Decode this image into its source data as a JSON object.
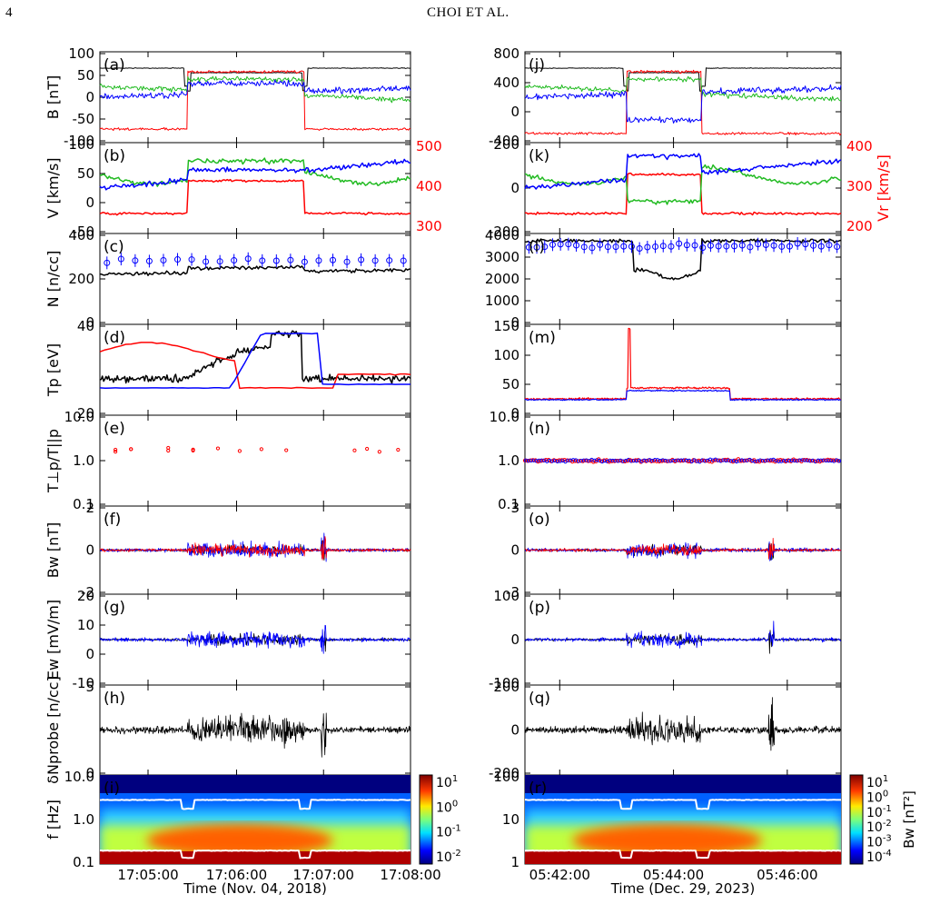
{
  "page": {
    "number": "4",
    "running_head": "CHOI ET AL."
  },
  "colors": {
    "black": "#000000",
    "red": "#ff0000",
    "green": "#22bb22",
    "blue": "#0000ff",
    "white": "#ffffff"
  },
  "chart_data": [
    {
      "type": "line",
      "column": "left",
      "xlabel": "Time (Nov. 04, 2018)",
      "xticks": [
        "17:05:00",
        "17:06:00",
        "17:07:00",
        "17:08:00"
      ],
      "xrange": [
        "17:04:28",
        "17:08:00"
      ],
      "panels": [
        {
          "id": "a",
          "label": "(a)",
          "ylabel": "B [nT]",
          "ylim": [
            -100,
            100
          ],
          "yticks": [
            "100",
            "50",
            "0",
            "-50",
            "-100"
          ],
          "description": "magnetic field components: |B| near 70 (black), components green/blue/red flipping between ~-60 and ~60"
        },
        {
          "id": "b",
          "label": "(b)",
          "ylabel": "V [km/s]",
          "ylim": [
            -50,
            100
          ],
          "yticks": [
            "100",
            "50",
            "0",
            "-50"
          ],
          "y2label": "",
          "y2ticks": [
            "500",
            "400",
            "300"
          ],
          "description": "velocity components green/blue, radial in red on right axis"
        },
        {
          "id": "c",
          "label": "(c)",
          "ylabel": "N [n/cc]",
          "ylim": [
            0,
            450
          ],
          "yticks": [
            "400",
            "200",
            "0"
          ],
          "description": "density black line with blue error-bar markers"
        },
        {
          "id": "d",
          "label": "(d)",
          "ylabel": "Tp [eV]",
          "ylim": [
            10,
            42
          ],
          "yticks": [
            "40",
            "20"
          ],
          "description": "proton temperature black, red and blue curves"
        },
        {
          "id": "e",
          "label": "(e)",
          "ylabel": "T⊥p/T||p",
          "scale": "log",
          "ylim": [
            0.1,
            10
          ],
          "yticks": [
            "10.0",
            "1.0",
            "0.1"
          ],
          "description": "temperature anisotropy red markers ~1.5-2"
        },
        {
          "id": "f",
          "label": "(f)",
          "ylabel": "Bw [nT]",
          "ylim": [
            -3,
            3
          ],
          "yticks": [
            "2",
            "0",
            "-2"
          ],
          "description": "wave magnetic field black/blue/red"
        },
        {
          "id": "g",
          "label": "(g)",
          "ylabel": "Ew [mV/m]",
          "ylim": [
            -15,
            20
          ],
          "yticks": [
            "20",
            "10",
            "0",
            "-10"
          ],
          "description": "wave electric field"
        },
        {
          "id": "h",
          "label": "(h)",
          "ylabel": "δNprobe [n/cc]",
          "ylim": [
            -5,
            5
          ],
          "yticks": [
            "5",
            "0"
          ],
          "description": "density fluctuation"
        },
        {
          "id": "i",
          "label": "(i)",
          "ylabel": "f [Hz]",
          "scale": "log",
          "ylim": [
            0.07,
            10
          ],
          "yticks": [
            "10.0",
            "1.0",
            "0.1"
          ],
          "type": "heatmap",
          "colorbar": {
            "ticks": [
              "10^1",
              "10^0",
              "10^-1",
              "10^-2"
            ]
          }
        }
      ]
    },
    {
      "type": "line",
      "column": "right",
      "xlabel": "Time (Dec. 29, 2023)",
      "xticks": [
        "05:42:00",
        "05:44:00",
        "05:46:00"
      ],
      "panels": [
        {
          "id": "j",
          "label": "(j)",
          "ylabel": "",
          "ylim": [
            -600,
            800
          ],
          "yticks": [
            "800",
            "400",
            "0",
            "-400"
          ],
          "description": "magnetic field black/red/green/blue"
        },
        {
          "id": "k",
          "label": "(k)",
          "ylabel": "",
          "ylim": [
            -250,
            250
          ],
          "yticks": [
            "200",
            "0",
            "-200"
          ],
          "y2label": "Vr [km/s]",
          "y2ticks": [
            "400",
            "300",
            "200"
          ],
          "description": "velocity components"
        },
        {
          "id": "l",
          "label": "(l)",
          "ylabel": "",
          "ylim": [
            0,
            4200
          ],
          "yticks": [
            "4000",
            "3000",
            "2000",
            "1000",
            "0"
          ],
          "description": "density"
        },
        {
          "id": "m",
          "label": "(m)",
          "ylabel": "",
          "ylim": [
            0,
            180
          ],
          "yticks": [
            "150",
            "100",
            "50",
            "0"
          ],
          "description": "proton temperature"
        },
        {
          "id": "n",
          "label": "(n)",
          "ylabel": "",
          "scale": "log",
          "ylim": [
            0.1,
            10
          ],
          "yticks": [
            "10.0",
            "1.0",
            "0.1"
          ],
          "description": "anisotropy red/blue markers ~1"
        },
        {
          "id": "o",
          "label": "(o)",
          "ylabel": "",
          "ylim": [
            -4,
            4
          ],
          "yticks": [
            "3",
            "0",
            "-3"
          ],
          "description": "wave magnetic field"
        },
        {
          "id": "p",
          "label": "(p)",
          "ylabel": "",
          "ylim": [
            -180,
            180
          ],
          "yticks": [
            "100",
            "0",
            "-100"
          ],
          "description": "wave electric field"
        },
        {
          "id": "q",
          "label": "(q)",
          "ylabel": "",
          "ylim": [
            -320,
            320
          ],
          "yticks": [
            "200",
            "0",
            "-200"
          ],
          "description": "density fluctuation"
        },
        {
          "id": "r",
          "label": "(r)",
          "ylabel": "",
          "scale": "log",
          "ylim": [
            0.7,
            100
          ],
          "yticks": [
            "100",
            "10",
            "1"
          ],
          "type": "heatmap",
          "colorbar": {
            "label": "Bw [nT²]",
            "ticks": [
              "10^1",
              "10^0",
              "10^-1",
              "10^-2",
              "10^-3",
              "10^-4"
            ]
          }
        }
      ]
    }
  ]
}
